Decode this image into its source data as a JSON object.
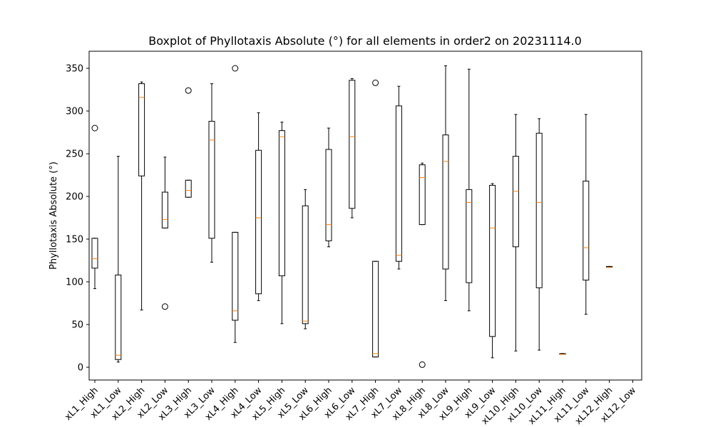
{
  "chart_data": {
    "type": "boxplot",
    "title": "Boxplot of Phyllotaxis Absolute (°) for all elements in order2 on 20231114.0",
    "xlabel": "",
    "ylabel": "Phyllotaxis Absolute (°)",
    "ylim": [
      -15,
      370
    ],
    "yticks": [
      0,
      50,
      100,
      150,
      200,
      250,
      300,
      350
    ],
    "categories": [
      "xL1_High",
      "xL1_Low",
      "xL2_High",
      "xL2_Low",
      "xL3_High",
      "xL3_Low",
      "xL4_High",
      "xL4_Low",
      "xL5_High",
      "xL5_Low",
      "xL6_High",
      "xL6_Low",
      "xL7_High",
      "xL7_Low",
      "xL8_High",
      "xL8_Low",
      "xL9_High",
      "xL9_Low",
      "xL10_High",
      "xL10_Low",
      "xL11_High",
      "xL11_Low",
      "xL12_High",
      "xL12_Low"
    ],
    "boxes": [
      {
        "whislo": 92,
        "q1": 116,
        "med": 127,
        "q3": 151,
        "whishi": 151,
        "fliers": [
          280
        ]
      },
      {
        "whislo": 6,
        "q1": 9,
        "med": 14,
        "q3": 108,
        "whishi": 247,
        "fliers": []
      },
      {
        "whislo": 67,
        "q1": 224,
        "med": 316,
        "q3": 332,
        "whishi": 334,
        "fliers": []
      },
      {
        "whislo": 163,
        "q1": 163,
        "med": 173,
        "q3": 205,
        "whishi": 246,
        "fliers": [
          71
        ]
      },
      {
        "whislo": 199,
        "q1": 199,
        "med": 207,
        "q3": 219,
        "whishi": 219,
        "fliers": [
          324
        ]
      },
      {
        "whislo": 123,
        "q1": 151,
        "med": 266,
        "q3": 288,
        "whishi": 332,
        "fliers": []
      },
      {
        "whislo": 29,
        "q1": 55,
        "med": 66,
        "q3": 158,
        "whishi": 158,
        "fliers": [
          350
        ]
      },
      {
        "whislo": 78,
        "q1": 86,
        "med": 175,
        "q3": 254,
        "whishi": 298,
        "fliers": []
      },
      {
        "whislo": 51,
        "q1": 107,
        "med": 270,
        "q3": 277,
        "whishi": 287,
        "fliers": []
      },
      {
        "whislo": 45,
        "q1": 51,
        "med": 54,
        "q3": 189,
        "whishi": 208,
        "fliers": []
      },
      {
        "whislo": 141,
        "q1": 148,
        "med": 167,
        "q3": 255,
        "whishi": 280,
        "fliers": []
      },
      {
        "whislo": 175,
        "q1": 186,
        "med": 270,
        "q3": 336,
        "whishi": 338,
        "fliers": []
      },
      {
        "whislo": 12,
        "q1": 12,
        "med": 16,
        "q3": 124,
        "whishi": 124,
        "fliers": [
          333
        ]
      },
      {
        "whislo": 115,
        "q1": 124,
        "med": 131,
        "q3": 306,
        "whishi": 329,
        "fliers": []
      },
      {
        "whislo": 167,
        "q1": 167,
        "med": 222,
        "q3": 237,
        "whishi": 239,
        "fliers": [
          3
        ]
      },
      {
        "whislo": 78,
        "q1": 115,
        "med": 241,
        "q3": 272,
        "whishi": 353,
        "fliers": []
      },
      {
        "whislo": 66,
        "q1": 99,
        "med": 193,
        "q3": 208,
        "whishi": 349,
        "fliers": []
      },
      {
        "whislo": 11,
        "q1": 36,
        "med": 163,
        "q3": 213,
        "whishi": 215,
        "fliers": []
      },
      {
        "whislo": 19,
        "q1": 141,
        "med": 206,
        "q3": 247,
        "whishi": 296,
        "fliers": []
      },
      {
        "whislo": 20,
        "q1": 93,
        "med": 193,
        "q3": 274,
        "whishi": 291,
        "fliers": []
      },
      {
        "whislo": 15,
        "q1": 15,
        "med": 15,
        "q3": 16,
        "whishi": 16,
        "fliers": []
      },
      {
        "whislo": 62,
        "q1": 102,
        "med": 140,
        "q3": 218,
        "whishi": 296,
        "fliers": []
      },
      {
        "whislo": 117,
        "q1": 117,
        "med": 117,
        "q3": 118,
        "whishi": 118,
        "fliers": []
      },
      null
    ],
    "colors": {
      "box": "#000000",
      "median": "#ff7f0e",
      "axes": "#000000",
      "flier": "#000000"
    },
    "grid": false
  }
}
